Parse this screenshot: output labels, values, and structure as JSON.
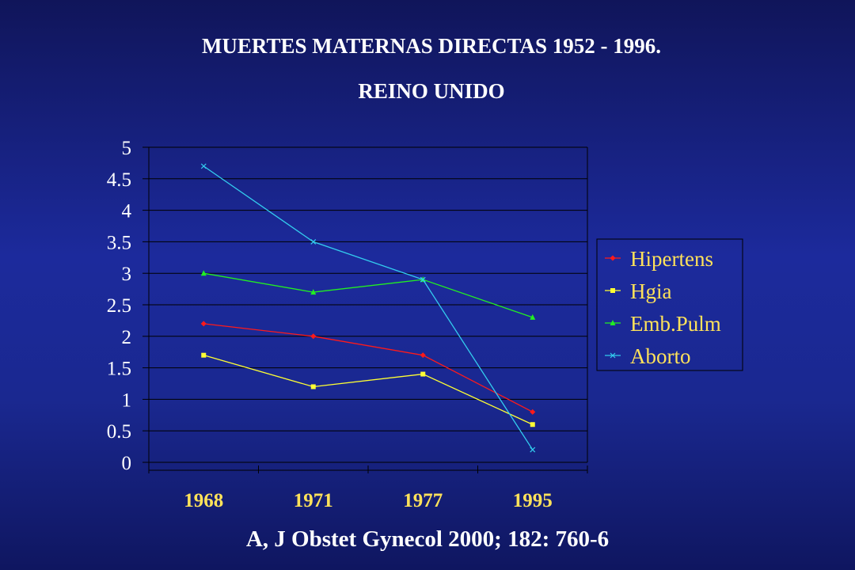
{
  "title": "MUERTES MATERNAS DIRECTAS 1952 - 1996.",
  "subtitle": "REINO UNIDO",
  "footer": "A, J Obstet Gynecol 2000; 182: 760-6",
  "chart_data": {
    "type": "line",
    "categories": [
      "1968",
      "1971",
      "1977",
      "1995"
    ],
    "ylim": [
      0,
      5
    ],
    "yticks": [
      0,
      0.5,
      1,
      1.5,
      2,
      2.5,
      3,
      3.5,
      4,
      4.5,
      5
    ],
    "grid": true,
    "legend_position": "right",
    "series": [
      {
        "name": "Hipertens",
        "values": [
          2.2,
          2.0,
          1.7,
          0.8
        ],
        "color": "#ff1a1a",
        "marker": "diamond"
      },
      {
        "name": "Hgia",
        "values": [
          1.7,
          1.2,
          1.4,
          0.6
        ],
        "color": "#ffff33",
        "marker": "square"
      },
      {
        "name": "Emb.Pulm",
        "values": [
          3.0,
          2.7,
          2.9,
          2.3
        ],
        "color": "#22ee22",
        "marker": "triangle"
      },
      {
        "name": "Aborto",
        "values": [
          4.7,
          3.5,
          2.9,
          0.2
        ],
        "color": "#33ccee",
        "marker": "x"
      }
    ]
  }
}
